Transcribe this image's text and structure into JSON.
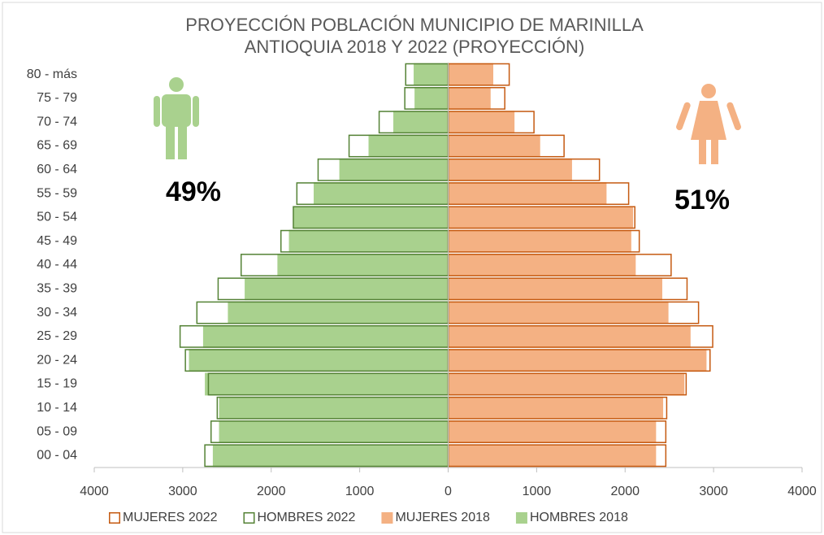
{
  "chart_data": {
    "type": "bar",
    "orientation": "horizontal",
    "overlap": true,
    "title": [
      "PROYECCIÓN POBLACIÓN MUNICIPIO DE MARINILLA",
      "ANTIOQUIA 2018 Y 2022 (PROYECCIÓN)"
    ],
    "annotations": [
      "49%",
      "51%"
    ],
    "categories": [
      "80 - más",
      "75 - 79",
      "70 - 74",
      "65 - 69",
      "60 - 64",
      "55 - 59",
      "50 - 54",
      "45 - 49",
      "40 - 44",
      "35 - 39",
      "30 - 34",
      "25 - 29",
      "20 - 24",
      "15 - 19",
      "10 - 14",
      "05 - 09",
      "00 - 04"
    ],
    "series": [
      {
        "name": "MUJERES 2022",
        "color": "#c55a11",
        "style": "outline",
        "values": [
          690,
          640,
          970,
          1310,
          1710,
          2040,
          2110,
          2160,
          2520,
          2700,
          2830,
          2990,
          2960,
          2690,
          2470,
          2460,
          2460
        ]
      },
      {
        "name": "HOMBRES 2022",
        "color": "#548235",
        "style": "outline",
        "values": [
          -480,
          -490,
          -780,
          -1120,
          -1470,
          -1710,
          -1750,
          -1890,
          -2340,
          -2600,
          -2840,
          -3030,
          -2970,
          -2710,
          -2610,
          -2680,
          -2750
        ]
      },
      {
        "name": "MUJERES 2018",
        "color": "#f4b183",
        "style": "fill",
        "values": [
          510,
          480,
          750,
          1040,
          1400,
          1790,
          2090,
          2070,
          2120,
          2420,
          2490,
          2740,
          2920,
          2670,
          2430,
          2350,
          2350
        ]
      },
      {
        "name": "HOMBRES 2018",
        "color": "#a9d18e",
        "style": "fill",
        "values": [
          -390,
          -380,
          -620,
          -900,
          -1230,
          -1520,
          -1750,
          -1800,
          -1930,
          -2300,
          -2490,
          -2770,
          -2930,
          -2750,
          -2590,
          -2590,
          -2660
        ]
      }
    ],
    "xlim": [
      -4000,
      4000
    ],
    "xticks": [
      {
        "value": -4000,
        "label": "4000"
      },
      {
        "value": -3000,
        "label": "3000"
      },
      {
        "value": -2000,
        "label": "2000"
      },
      {
        "value": -1000,
        "label": "1000"
      },
      0,
      1000,
      2000,
      3000,
      4000
    ],
    "legend": "bottom"
  }
}
